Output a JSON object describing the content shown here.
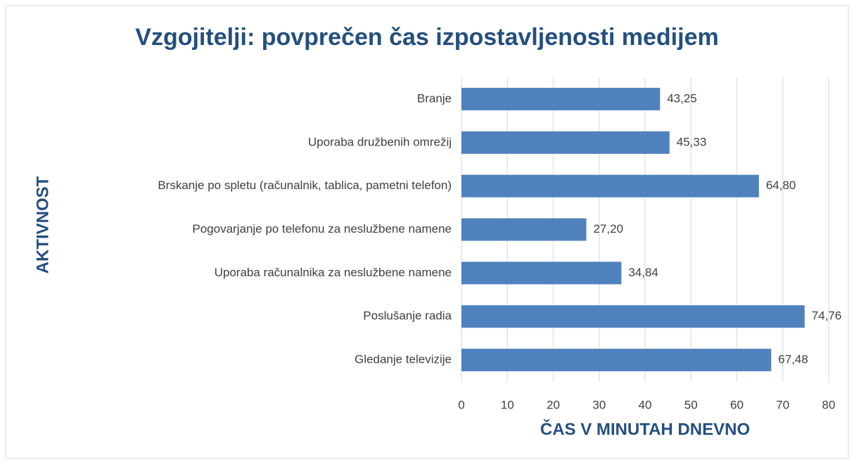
{
  "chart_data": {
    "type": "hbar",
    "title": "Vzgojitelji: povprečen čas izpostavljenosti medijem",
    "x_label": "ČAS V MINUTAH DNEVNO",
    "y_label": "AKTIVNOST",
    "categories": [
      "Branje",
      "Uporaba družbenih omrežij",
      "Brskanje po spletu (računalnik, tablica, pametni telefon)",
      "Pogovarjanje po telefonu za neslužbene namene",
      "Uporaba računalnika za neslužbene namene",
      "Poslušanje radia",
      "Gledanje televizije"
    ],
    "values": [
      43.25,
      45.33,
      64.8,
      27.2,
      34.84,
      74.76,
      67.48
    ],
    "value_labels": [
      "43,25",
      "45,33",
      "64,80",
      "27,20",
      "34,84",
      "74,76",
      "67,48"
    ],
    "color": "#4f81bd",
    "xlim": [
      0,
      80
    ],
    "xticks": [
      0,
      10,
      20,
      30,
      40,
      50,
      60,
      70,
      80
    ],
    "grid": true
  }
}
